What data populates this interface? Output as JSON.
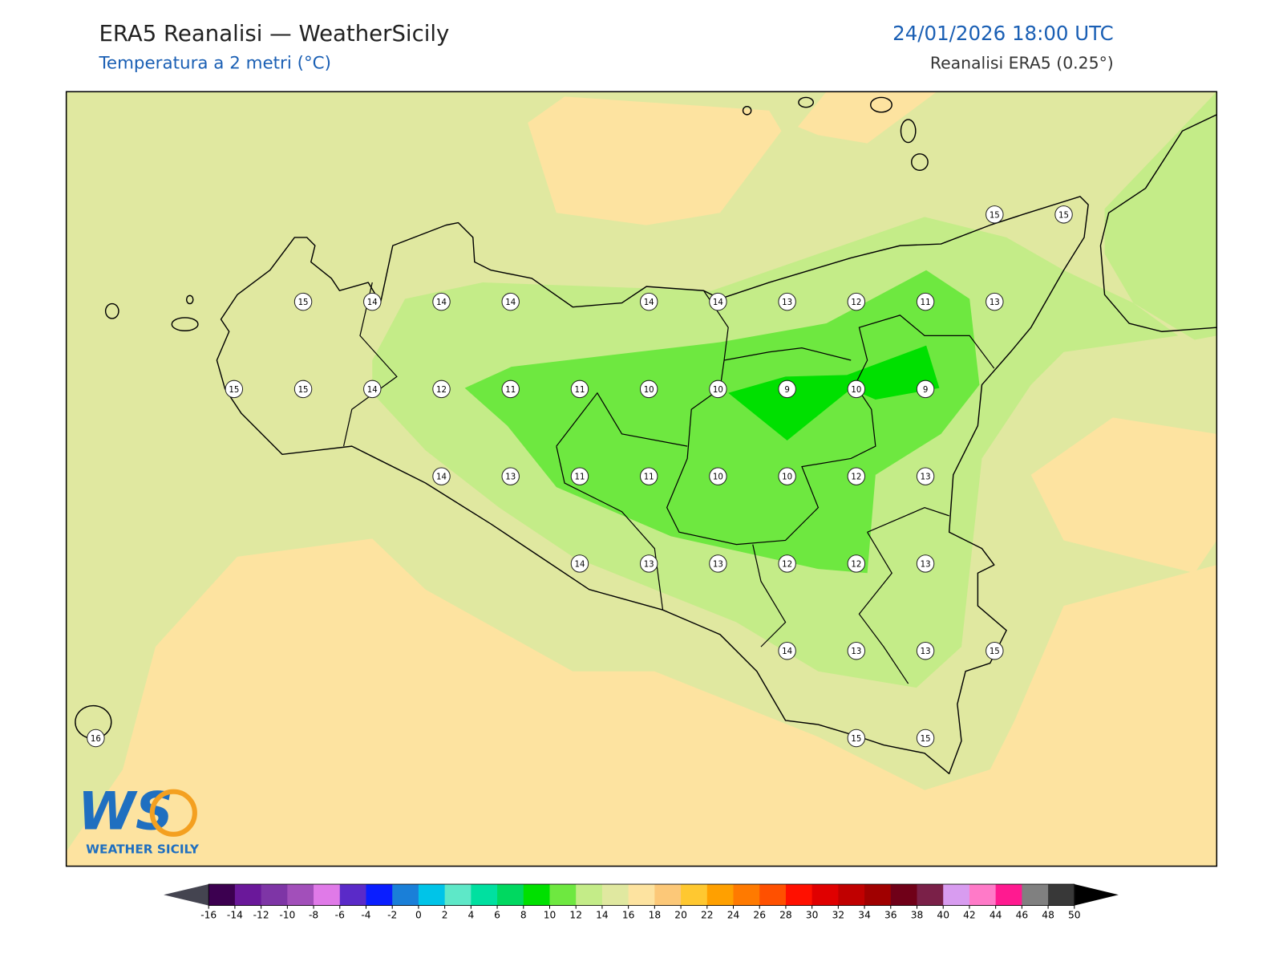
{
  "header": {
    "title": "ERA5 Reanalisi — WeatherSicily",
    "subtitle": "Temperatura a 2 metri (°C)",
    "datetime": "24/01/2026 18:00 UTC",
    "source": "Reanalisi ERA5 (0.25°)"
  },
  "grid_labels": [
    [
      null,
      null,
      null,
      null,
      null,
      null,
      null,
      null,
      null,
      null,
      null,
      null,
      null,
      15,
      15
    ],
    [
      null,
      null,
      null,
      15,
      14,
      14,
      14,
      null,
      14,
      14,
      13,
      12,
      11,
      13,
      null
    ],
    [
      null,
      null,
      15,
      15,
      14,
      12,
      11,
      11,
      10,
      10,
      9,
      10,
      9,
      null,
      null
    ],
    [
      null,
      null,
      null,
      null,
      null,
      14,
      13,
      11,
      11,
      10,
      10,
      12,
      13,
      null,
      null
    ],
    [
      null,
      null,
      null,
      null,
      null,
      null,
      null,
      14,
      13,
      13,
      12,
      12,
      13,
      null,
      null
    ],
    [
      null,
      null,
      null,
      null,
      null,
      null,
      null,
      null,
      null,
      null,
      14,
      13,
      13,
      15,
      null
    ],
    [
      16,
      null,
      null,
      null,
      null,
      null,
      null,
      null,
      null,
      null,
      null,
      15,
      15,
      null,
      null
    ]
  ],
  "logo": {
    "mark": "WS",
    "name": "WEATHER SICILY"
  },
  "colorbar": {
    "ticks": [
      -16,
      -14,
      -12,
      -10,
      -8,
      -6,
      -4,
      -2,
      0,
      2,
      4,
      6,
      8,
      10,
      12,
      14,
      16,
      18,
      20,
      22,
      24,
      26,
      28,
      30,
      32,
      34,
      36,
      38,
      40,
      42,
      44,
      46,
      48,
      50
    ],
    "colors": [
      "#3c0050",
      "#6a189a",
      "#7e35a6",
      "#a24fba",
      "#e07ae8",
      "#5a2ac8",
      "#0a1eff",
      "#1a7fd8",
      "#00c4e8",
      "#5ee8c8",
      "#00e0a0",
      "#00d860",
      "#00e000",
      "#6ee840",
      "#c4ec88",
      "#e0e8a0",
      "#fde3a0",
      "#fcc878",
      "#ffc830",
      "#ffa000",
      "#ff7a00",
      "#ff5000",
      "#ff1000",
      "#e00000",
      "#c00000",
      "#a00000",
      "#700018",
      "#7a2048",
      "#d89cf0",
      "#ff7ac8",
      "#ff1a90",
      "#808080",
      "#383838"
    ],
    "under_color": "#444450",
    "over_color": "#000000"
  }
}
